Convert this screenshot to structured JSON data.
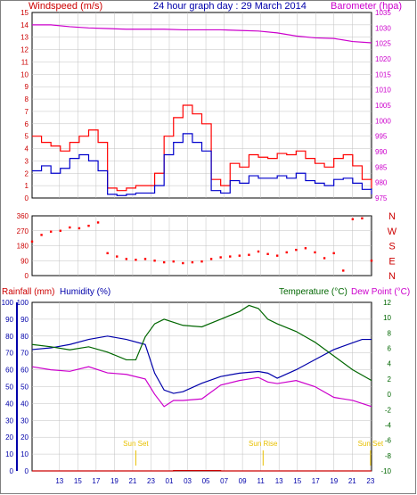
{
  "header": {
    "left_title": "Windspeed (m/s)",
    "center_title": "24 hour graph day : 29 March 2014",
    "right_title": "Barometer (hpa)"
  },
  "lower_header": {
    "rainfall_label": "Rainfall (mm)",
    "humidity_label": "Humidity (%)",
    "temperature_label": "Temperature (°C)",
    "dewpoint_label": "Dew Point (°C)"
  },
  "time_ticks": [
    "13",
    "15",
    "17",
    "19",
    "21",
    "23",
    "01",
    "03",
    "05",
    "07",
    "09",
    "11",
    "13",
    "15",
    "17",
    "19",
    "21",
    "23"
  ],
  "annotations": [
    "Sun Set",
    "Sun Rise",
    "Sun Set"
  ],
  "colors": {
    "wind_gust": "#ff0000",
    "wind_avg": "#0000cc",
    "barometer": "#cc00cc",
    "direction": "#ff0000",
    "rainfall": "#cc0000",
    "humidity": "#0000aa",
    "temperature": "#006600",
    "dewpoint": "#cc00cc",
    "grid": "#c0c0c0",
    "sun": "#e8c000"
  },
  "chart_data": [
    {
      "type": "line",
      "x_ticks": [
        "13",
        "15",
        "17",
        "19",
        "21",
        "23",
        "01",
        "03",
        "05",
        "07",
        "09",
        "11",
        "13",
        "15",
        "17",
        "19",
        "21",
        "23"
      ],
      "y_left": {
        "label": "Windspeed (m/s)",
        "ylim": [
          0,
          15
        ],
        "ticks": [
          "0",
          "1",
          "2",
          "3",
          "4",
          "5",
          "6",
          "7",
          "8",
          "9",
          "10",
          "11",
          "12",
          "13",
          "14",
          "15"
        ]
      },
      "y_right": {
        "label": "Barometer (hpa)",
        "ylim": [
          975,
          1035
        ],
        "ticks": [
          "975",
          "980",
          "985",
          "990",
          "995",
          "1000",
          "1005",
          "1010",
          "1015",
          "1020",
          "1025",
          "1030",
          "1035"
        ]
      },
      "series": [
        {
          "axis": "left",
          "x": [
            0,
            2,
            4,
            6,
            8,
            10,
            12,
            14,
            16,
            18,
            20,
            22,
            24,
            26,
            28,
            30,
            32,
            34,
            36,
            38,
            40,
            42,
            44,
            46,
            48,
            50,
            52,
            54,
            56,
            58,
            60,
            62,
            64,
            66,
            68,
            70,
            72
          ],
          "values": [
            5,
            4.5,
            4.2,
            3.8,
            4.5,
            5,
            5.5,
            4.5,
            0.8,
            0.6,
            0.8,
            1,
            1,
            2,
            5,
            6.5,
            7.5,
            6.8,
            6,
            1.5,
            1,
            2.8,
            2.5,
            3.5,
            3.3,
            3.2,
            3.6,
            3.5,
            3.8,
            3.2,
            2.8,
            2.5,
            3.2,
            3.5,
            2.6,
            1.5,
            0.8
          ]
        },
        {
          "axis": "left",
          "x": [
            0,
            2,
            4,
            6,
            8,
            10,
            12,
            14,
            16,
            18,
            20,
            22,
            24,
            26,
            28,
            30,
            32,
            34,
            36,
            38,
            40,
            42,
            44,
            46,
            48,
            50,
            52,
            54,
            56,
            58,
            60,
            62,
            64,
            66,
            68,
            70,
            72
          ],
          "values": [
            2.2,
            2.6,
            2,
            2.4,
            3.2,
            3.5,
            3,
            2.2,
            0.3,
            0.2,
            0.3,
            0.4,
            0.4,
            1,
            3.5,
            4.5,
            5.2,
            4.5,
            3.8,
            0.6,
            0.4,
            1.4,
            1.2,
            1.8,
            1.6,
            1.6,
            1.8,
            1.6,
            2,
            1.4,
            1.2,
            1,
            1.5,
            1.6,
            1.2,
            0.7,
            0.3
          ]
        },
        {
          "axis": "right",
          "x": [
            0,
            4,
            8,
            12,
            16,
            20,
            24,
            28,
            32,
            36,
            40,
            44,
            48,
            52,
            56,
            60,
            64,
            68,
            72
          ],
          "values": [
            1031,
            1031,
            1030.4,
            1030,
            1029.8,
            1029.6,
            1029.6,
            1029.6,
            1029.4,
            1029.4,
            1029.4,
            1029.2,
            1029,
            1028.4,
            1027.4,
            1026.8,
            1026.6,
            1025.6,
            1025.2
          ]
        }
      ]
    },
    {
      "type": "scatter",
      "ylim": [
        0,
        360
      ],
      "y_ticks": [
        "0",
        "90",
        "180",
        "270",
        "360"
      ],
      "right_labels": [
        "N",
        "W",
        "S",
        "E",
        "N"
      ],
      "series": [
        {
          "x": [
            0,
            2,
            4,
            6,
            8,
            10,
            12,
            14,
            16,
            18,
            20,
            22,
            24,
            26,
            28,
            30,
            32,
            34,
            36,
            38,
            40,
            42,
            44,
            46,
            48,
            50,
            52,
            54,
            56,
            58,
            60,
            62,
            64,
            66,
            68,
            70,
            72
          ],
          "values": [
            205,
            245,
            265,
            270,
            290,
            285,
            300,
            320,
            135,
            115,
            100,
            95,
            100,
            90,
            80,
            85,
            75,
            80,
            85,
            100,
            110,
            115,
            120,
            125,
            145,
            130,
            120,
            140,
            155,
            165,
            140,
            105,
            135,
            30,
            340,
            345,
            90
          ]
        }
      ]
    },
    {
      "type": "line",
      "x_ticks": [
        "13",
        "15",
        "17",
        "19",
        "21",
        "23",
        "01",
        "03",
        "05",
        "07",
        "09",
        "11",
        "13",
        "15",
        "17",
        "19",
        "21",
        "23"
      ],
      "y_left": {
        "label": "Rainfall (mm) / Humidity (%)",
        "ylim": [
          0,
          100
        ],
        "ticks": [
          "0",
          "10",
          "20",
          "30",
          "40",
          "50",
          "60",
          "70",
          "80",
          "90",
          "100"
        ]
      },
      "y_right": {
        "label": "Temperature (°C) / Dew Point (°C)",
        "ylim": [
          -10,
          12
        ],
        "ticks": [
          "-10",
          "-8",
          "-6",
          "-4",
          "-2",
          "0",
          "2",
          "4",
          "6",
          "8",
          "10",
          "12"
        ]
      },
      "series": [
        {
          "name": "Humidity (%)",
          "axis": "left",
          "x": [
            0,
            4,
            8,
            12,
            16,
            20,
            24,
            26,
            28,
            30,
            32,
            36,
            40,
            44,
            48,
            50,
            52,
            56,
            60,
            64,
            68,
            70,
            72
          ],
          "values": [
            72,
            73,
            75,
            78,
            80,
            78,
            75,
            58,
            48,
            46,
            47,
            52,
            56,
            58,
            59,
            58,
            55,
            60,
            66,
            72,
            76,
            78,
            78
          ]
        },
        {
          "name": "Rainfall (mm)",
          "axis": "left",
          "x": [
            0,
            12,
            24,
            30,
            34,
            40,
            46,
            72
          ],
          "values": [
            0,
            0,
            0,
            0.2,
            0.2,
            0,
            0,
            0
          ]
        },
        {
          "name": "Temperature (°C)",
          "axis": "right",
          "x": [
            0,
            4,
            8,
            12,
            16,
            20,
            22,
            24,
            26,
            28,
            32,
            36,
            40,
            44,
            46,
            48,
            50,
            52,
            56,
            60,
            64,
            68,
            72
          ],
          "values": [
            6.5,
            6.2,
            5.8,
            6.2,
            5.5,
            4.5,
            4.5,
            7.5,
            9.2,
            9.8,
            9,
            8.8,
            9.8,
            10.8,
            11.6,
            11.2,
            9.8,
            9.2,
            8.2,
            6.8,
            5,
            3.2,
            1.8
          ]
        },
        {
          "name": "Dew Point (°C)",
          "axis": "right",
          "x": [
            0,
            4,
            8,
            12,
            16,
            20,
            24,
            26,
            28,
            30,
            32,
            36,
            40,
            44,
            48,
            50,
            52,
            56,
            60,
            64,
            68,
            72
          ],
          "values": [
            3.6,
            3.2,
            3,
            3.6,
            2.8,
            2.6,
            2,
            0,
            -1.6,
            -0.8,
            -0.8,
            -0.6,
            1.2,
            1.8,
            2.2,
            1.6,
            1.4,
            1.8,
            1,
            -0.4,
            -0.8,
            -1.6
          ]
        }
      ]
    }
  ]
}
